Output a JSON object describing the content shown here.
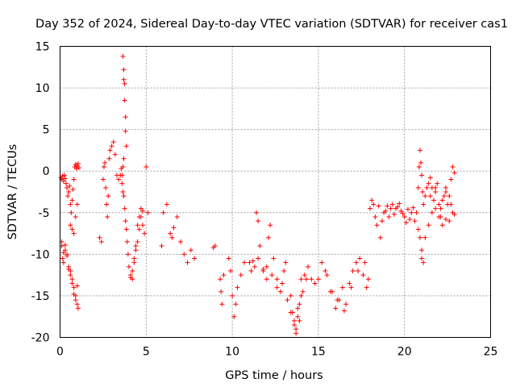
{
  "chart_data": {
    "type": "scatter",
    "title": "Day 352 of 2024, Sidereal Day-to-day VTEC variation (SDTVAR) for receiver cas1",
    "xlabel": "GPS time / hours",
    "ylabel": "SDTVAR / TECUs",
    "xlim": [
      0,
      25
    ],
    "ylim": [
      -20,
      15
    ],
    "xticks": [
      "0",
      "5",
      "10",
      "15",
      "20",
      "25"
    ],
    "yticks": [
      "15",
      "10",
      "5",
      "0",
      "-5",
      "-10",
      "-15",
      "-20"
    ],
    "grid": true,
    "marker": "plus",
    "color": "#ff0000",
    "series": [
      {
        "name": "SDTVAR",
        "x": [
          0.05,
          0.1,
          0.15,
          0.2,
          0.25,
          0.3,
          0.35,
          0.4,
          0.45,
          0.5,
          0.55,
          0.6,
          0.65,
          0.7,
          0.75,
          0.8,
          0.85,
          0.9,
          0.95,
          1.0,
          1.05,
          1.1,
          0.1,
          0.15,
          0.2,
          0.3,
          0.4,
          0.5,
          0.6,
          0.7,
          0.8,
          0.9,
          1.0,
          1.05,
          0.1,
          0.2,
          0.3,
          0.4,
          0.5,
          0.6,
          0.7,
          0.8,
          0.9,
          1.0,
          0.6,
          0.7,
          0.8,
          0.9,
          1.0,
          2.3,
          2.4,
          2.5,
          2.55,
          2.6,
          2.65,
          2.7,
          2.75,
          2.8,
          2.85,
          2.9,
          3.0,
          3.1,
          3.2,
          3.3,
          3.4,
          3.5,
          3.55,
          3.6,
          3.65,
          3.7,
          3.75,
          3.8,
          3.85,
          3.9,
          3.95,
          4.0,
          4.1,
          4.2,
          4.3,
          4.4,
          4.5,
          4.6,
          4.7,
          4.8,
          4.9,
          5.0,
          5.1,
          3.65,
          3.7,
          3.7,
          3.75,
          3.75,
          3.8,
          3.8,
          3.85,
          3.7,
          3.65,
          3.6,
          4.1,
          4.2,
          4.3,
          4.4,
          4.5,
          4.6,
          4.7,
          4.8,
          5.9,
          6.0,
          6.2,
          6.4,
          6.5,
          6.6,
          6.8,
          7.0,
          7.2,
          7.4,
          7.6,
          7.8,
          8.9,
          9.0,
          9.3,
          9.35,
          9.4,
          9.5,
          9.8,
          9.9,
          10.0,
          10.1,
          10.2,
          10.3,
          10.5,
          10.7,
          11.0,
          11.2,
          11.4,
          11.5,
          11.6,
          11.8,
          12.0,
          12.1,
          12.2,
          12.4,
          12.6,
          12.8,
          13.0,
          13.2,
          13.4,
          13.6,
          13.8,
          14.0,
          14.2,
          14.4,
          14.6,
          11.1,
          11.3,
          11.5,
          11.8,
          12.0,
          12.3,
          12.6,
          12.9,
          13.1,
          13.4,
          13.7,
          13.9,
          14.1,
          14.3,
          13.5,
          13.6,
          13.7,
          13.8,
          13.9,
          14.0,
          14.8,
          15.0,
          15.2,
          15.5,
          15.8,
          16.0,
          16.2,
          16.4,
          16.6,
          16.8,
          17.0,
          17.2,
          17.4,
          17.6,
          17.8,
          15.4,
          15.7,
          16.1,
          16.5,
          16.9,
          17.3,
          17.7,
          17.9,
          18.0,
          18.2,
          18.4,
          18.6,
          18.8,
          19.0,
          19.2,
          19.4,
          19.6,
          19.8,
          20.0,
          20.2,
          20.4,
          18.1,
          18.3,
          18.5,
          18.7,
          18.9,
          19.1,
          19.3,
          19.5,
          19.7,
          19.9,
          20.1,
          20.3,
          20.5,
          20.6,
          20.7,
          20.8,
          20.85,
          20.9,
          20.95,
          21.0,
          21.05,
          21.1,
          21.2,
          21.3,
          21.4,
          21.5,
          21.6,
          21.7,
          21.8,
          21.9,
          22.0,
          22.1,
          22.2,
          22.3,
          22.4,
          22.5,
          22.6,
          22.7,
          22.8,
          22.9,
          20.9,
          21.0,
          21.1,
          20.8,
          21.0,
          21.2,
          21.4,
          21.6,
          21.8,
          22.0,
          22.2,
          22.4,
          22.6,
          22.8,
          21.5,
          21.8,
          22.1,
          22.4,
          22.7,
          22.9
        ],
        "y": [
          -0.8,
          -1.0,
          -0.6,
          -1.2,
          -0.5,
          -0.9,
          -1.5,
          -2.0,
          -3.0,
          -2.5,
          -1.8,
          -4.0,
          -5.0,
          -3.5,
          -2.2,
          -1.0,
          0.5,
          0.8,
          0.3,
          0.6,
          0.9,
          0.4,
          -9.0,
          -10.5,
          -11.0,
          -9.5,
          -10.0,
          -11.5,
          -12.0,
          -13.0,
          -14.0,
          -15.0,
          -16.0,
          -16.5,
          -8.5,
          -9.8,
          -8.9,
          -10.2,
          -11.8,
          -12.5,
          -13.5,
          -14.8,
          -15.5,
          -13.8,
          -6.5,
          -7.0,
          -7.5,
          -5.5,
          -4.0,
          -8.0,
          -8.5,
          -1.0,
          0.5,
          1.0,
          -2.0,
          -4.0,
          -5.5,
          -3.0,
          1.5,
          2.5,
          3.0,
          3.5,
          2.0,
          -0.5,
          -1.0,
          -0.5,
          0.3,
          -1.5,
          -2.5,
          -3.0,
          -4.5,
          -6.0,
          -7.0,
          -8.5,
          -10.0,
          -11.5,
          -12.5,
          -13.0,
          -11.0,
          -9.0,
          -6.5,
          -5.5,
          -4.5,
          -6.5,
          -7.5,
          0.5,
          -5.0,
          13.8,
          12.2,
          11.0,
          10.5,
          8.5,
          6.5,
          4.8,
          3.0,
          1.5,
          0.5,
          -0.5,
          -12.8,
          -12.0,
          -10.5,
          -9.5,
          -8.5,
          -7.0,
          -5.5,
          -4.8,
          -9.0,
          -5.0,
          -4.0,
          -7.5,
          -8.0,
          -6.8,
          -5.5,
          -8.5,
          -10.0,
          -11.0,
          -9.5,
          -10.5,
          -9.2,
          -9.0,
          -13.0,
          -14.5,
          -16.0,
          -12.5,
          -10.5,
          -12.0,
          -15.0,
          -17.5,
          -16.0,
          -14.0,
          -12.5,
          -11.0,
          -11.0,
          -10.8,
          -5.0,
          -6.0,
          -9.0,
          -12.0,
          -11.5,
          -8.0,
          -6.5,
          -10.5,
          -13.0,
          -14.5,
          -12.0,
          -15.5,
          -17.0,
          -18.5,
          -16.5,
          -13.0,
          -12.5,
          -11.5,
          -13.0,
          -12.0,
          -11.5,
          -10.5,
          -11.8,
          -13.0,
          -12.5,
          -14.0,
          -13.5,
          -11.0,
          -15.0,
          -19.5,
          -18.0,
          -14.5,
          -13.0,
          -17.0,
          -18.0,
          -19.0,
          -17.5,
          -16.0,
          -15.0,
          -13.5,
          -13.0,
          -11.0,
          -12.5,
          -14.5,
          -16.5,
          -15.5,
          -14.0,
          -16.0,
          -13.5,
          -12.0,
          -11.0,
          -10.5,
          -12.5,
          -14.0,
          -12.0,
          -14.5,
          -15.5,
          -16.8,
          -14.0,
          -12.0,
          -11.0,
          -13.0,
          -4.5,
          -4.0,
          -6.5,
          -8.0,
          -5.0,
          -4.2,
          -4.5,
          -5.2,
          -4.3,
          -4.8,
          -5.5,
          -4.6,
          -5.0,
          -3.5,
          -5.5,
          -4.2,
          -6.0,
          -4.8,
          -5.5,
          -4.0,
          -4.5,
          -3.9,
          -5.1,
          -6.2,
          -5.8,
          -4.4,
          -6.0,
          -5.0,
          -2.0,
          0.5,
          2.5,
          1.0,
          -0.5,
          -2.5,
          -4.0,
          -3.0,
          -2.0,
          -1.5,
          -0.8,
          -2.0,
          -3.5,
          -2.5,
          -1.5,
          -4.0,
          -5.5,
          -6.5,
          -3.0,
          -2.5,
          -4.0,
          -3.0,
          -1.0,
          0.5,
          -0.2,
          -8.0,
          -10.5,
          -11.0,
          -7.0,
          -9.5,
          -8.0,
          -6.5,
          -5.0,
          -4.5,
          -5.5,
          -3.5,
          -2.0,
          -6.0,
          -5.0,
          -3.0,
          -2.0,
          -4.5,
          -5.8,
          -4.0,
          -5.2
        ]
      }
    ]
  }
}
